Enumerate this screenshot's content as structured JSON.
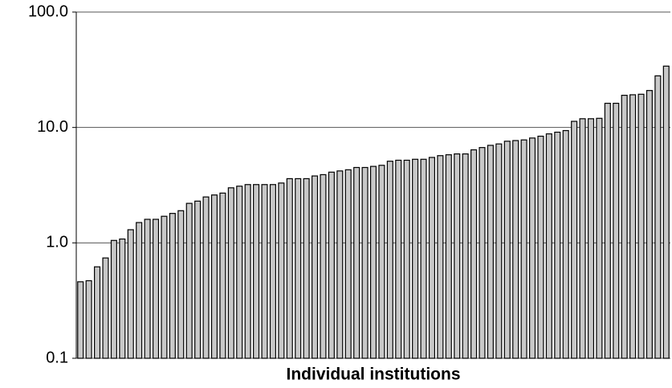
{
  "chart_data": {
    "type": "bar",
    "x_label": "Individual institutions",
    "values": [
      0.46,
      0.47,
      0.62,
      0.74,
      1.05,
      1.08,
      1.3,
      1.5,
      1.6,
      1.6,
      1.7,
      1.8,
      1.9,
      2.2,
      2.3,
      2.5,
      2.6,
      2.7,
      3.0,
      3.1,
      3.2,
      3.2,
      3.2,
      3.2,
      3.3,
      3.6,
      3.6,
      3.6,
      3.8,
      3.9,
      4.1,
      4.2,
      4.3,
      4.5,
      4.5,
      4.6,
      4.7,
      5.1,
      5.2,
      5.2,
      5.3,
      5.3,
      5.5,
      5.7,
      5.8,
      5.9,
      5.9,
      6.4,
      6.7,
      7.0,
      7.2,
      7.6,
      7.7,
      7.8,
      8.1,
      8.4,
      8.8,
      9.1,
      9.4,
      11.3,
      11.9,
      11.9,
      12.0,
      16.2,
      16.2,
      19.0,
      19.2,
      19.4,
      20.9,
      28,
      34
    ],
    "color": "#c8c8c8",
    "log_scale": true,
    "grid": true,
    "ylim": [
      0.1,
      100
    ],
    "yticks": [
      0.1,
      {
        "value": 1,
        "label": "1.0"
      },
      {
        "value": 10,
        "label": "10.0"
      },
      {
        "value": 100,
        "label": "100.0"
      }
    ]
  }
}
